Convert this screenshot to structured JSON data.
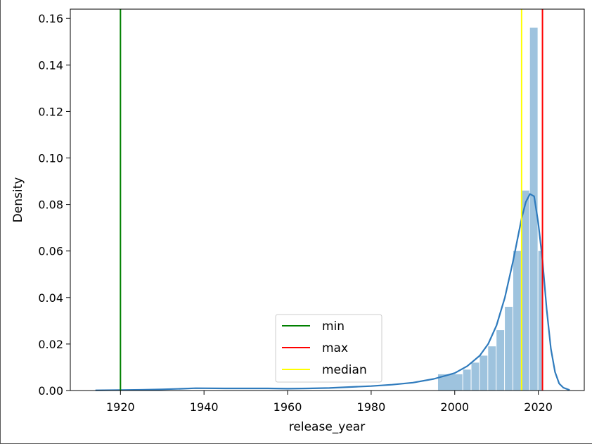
{
  "chart_data": {
    "type": "histogram",
    "xlabel": "release_year",
    "ylabel": "Density",
    "xlim": [
      1908,
      2031
    ],
    "ylim": [
      0,
      0.164
    ],
    "xticks": [
      1920,
      1940,
      1960,
      1980,
      2000,
      2020
    ],
    "yticks": [
      0.0,
      0.02,
      0.04,
      0.06,
      0.08,
      0.1,
      0.12,
      0.14,
      0.16
    ],
    "xtick_labels": [
      "1920",
      "1940",
      "1960",
      "1980",
      "2000",
      "2020"
    ],
    "ytick_labels": [
      "0.00",
      "0.02",
      "0.04",
      "0.06",
      "0.08",
      "0.10",
      "0.12",
      "0.14",
      "0.16"
    ],
    "grid": false,
    "histogram": {
      "color": "#9ec3de",
      "bins": [
        {
          "x0": 1996,
          "x1": 2002,
          "y": 0.007
        },
        {
          "x0": 2002,
          "x1": 2004,
          "y": 0.009
        },
        {
          "x0": 2004,
          "x1": 2006,
          "y": 0.012
        },
        {
          "x0": 2006,
          "x1": 2008,
          "y": 0.015
        },
        {
          "x0": 2008,
          "x1": 2010,
          "y": 0.019
        },
        {
          "x0": 2010,
          "x1": 2012,
          "y": 0.026
        },
        {
          "x0": 2012,
          "x1": 2014,
          "y": 0.036
        },
        {
          "x0": 2014,
          "x1": 2016,
          "y": 0.06
        },
        {
          "x0": 2016,
          "x1": 2018,
          "y": 0.086
        },
        {
          "x0": 2018,
          "x1": 2020,
          "y": 0.156
        },
        {
          "x0": 2020,
          "x1": 2021,
          "y": 0.06
        }
      ]
    },
    "kde": {
      "color": "#2f7bbd",
      "x": [
        1914,
        1920,
        1925,
        1930,
        1935,
        1938,
        1945,
        1950,
        1955,
        1960,
        1965,
        1970,
        1975,
        1980,
        1985,
        1990,
        1995,
        2000,
        2003,
        2006,
        2008,
        2010,
        2012,
        2014,
        2016,
        2017,
        2018,
        2019,
        2020,
        2021,
        2022,
        2023,
        2024,
        2025,
        2026,
        2027.5
      ],
      "y": [
        0.0001,
        0.0002,
        0.0003,
        0.0005,
        0.0008,
        0.001,
        0.0009,
        0.0009,
        0.0009,
        0.0008,
        0.0009,
        0.0011,
        0.0015,
        0.0019,
        0.0025,
        0.0034,
        0.005,
        0.0075,
        0.0105,
        0.015,
        0.02,
        0.028,
        0.04,
        0.056,
        0.074,
        0.081,
        0.0845,
        0.0835,
        0.072,
        0.056,
        0.035,
        0.018,
        0.008,
        0.003,
        0.0012,
        0.0002
      ]
    },
    "vlines": [
      {
        "name": "min",
        "x": 1920,
        "color": "#008000"
      },
      {
        "name": "max",
        "x": 2021,
        "color": "#ff0000"
      },
      {
        "name": "median",
        "x": 2016,
        "color": "#ffff00"
      }
    ],
    "legend": {
      "position": "lower-center",
      "entries": [
        {
          "label": "min",
          "color": "#008000"
        },
        {
          "label": "max",
          "color": "#ff0000"
        },
        {
          "label": "median",
          "color": "#ffff00"
        }
      ]
    }
  }
}
